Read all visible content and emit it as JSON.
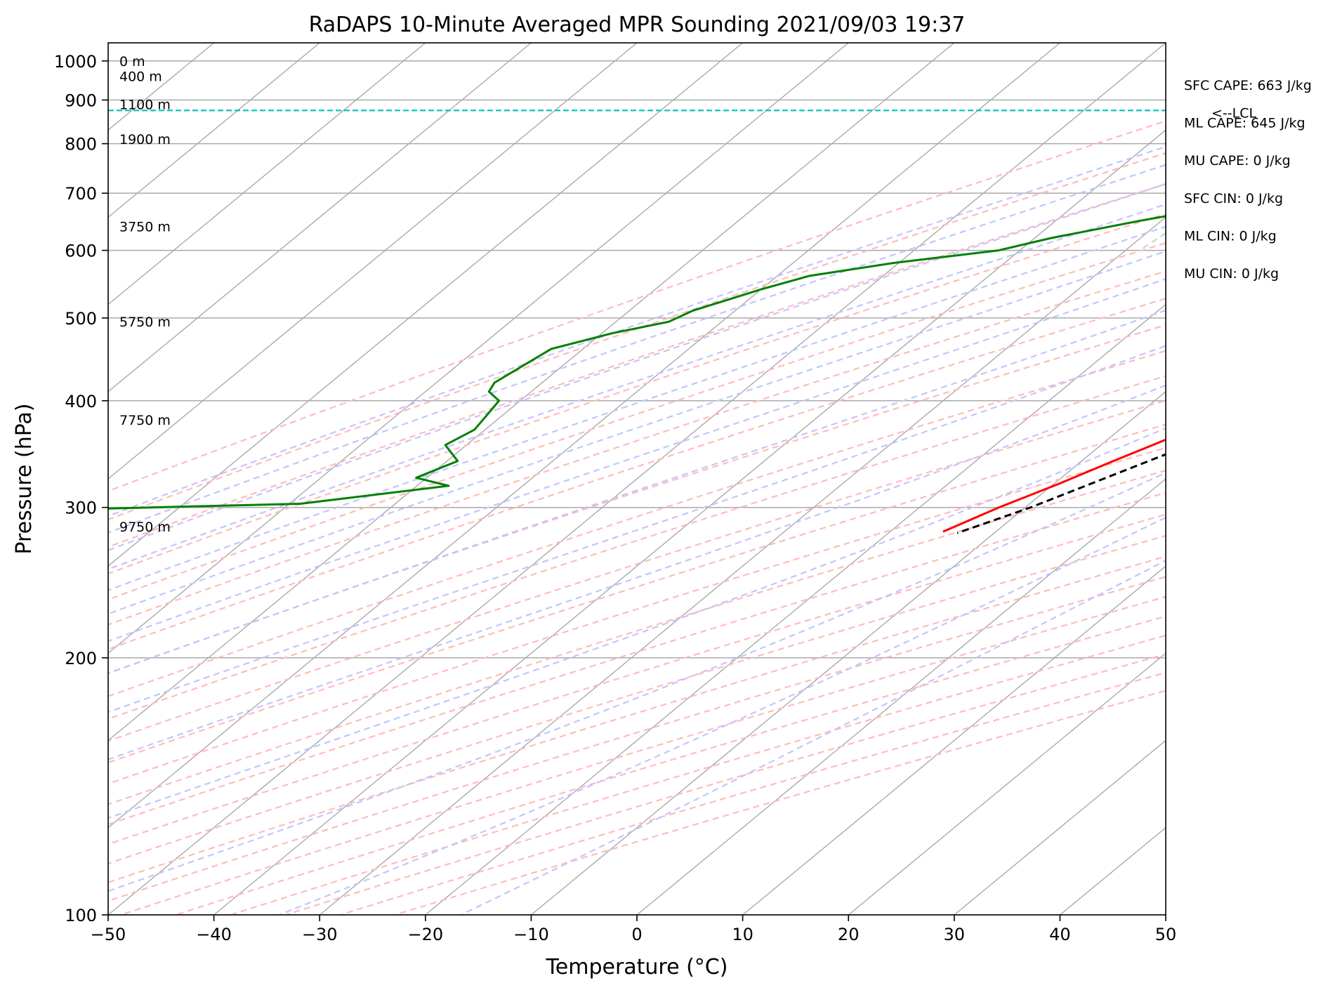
{
  "chart_data": {
    "type": "skew-t log-p sounding",
    "title": "RaDAPS 10-Minute Averaged MPR Sounding 2021/09/03 19:37",
    "xlabel": "Temperature (°C)",
    "ylabel": "Pressure (hPa)",
    "xlim": [
      -50,
      50
    ],
    "ylim": [
      1050,
      100
    ],
    "y_scale": "log",
    "grid": true,
    "x_ticks": [
      -50,
      -40,
      -30,
      -20,
      -10,
      0,
      10,
      20,
      30,
      40,
      50
    ],
    "x_tick_labels": [
      "−50",
      "−40",
      "−30",
      "−20",
      "−10",
      "0",
      "10",
      "20",
      "30",
      "40",
      "50"
    ],
    "y_ticks": [
      1000,
      900,
      800,
      700,
      600,
      500,
      400,
      300,
      200,
      100
    ],
    "y_tick_labels": [
      "1000",
      "900",
      "800",
      "700",
      "600",
      "500",
      "400",
      "300",
      "200",
      "100"
    ],
    "height_labels": [
      {
        "text": "0 m",
        "p": 1000
      },
      {
        "text": "400 m",
        "p": 960
      },
      {
        "text": "1100 m",
        "p": 890
      },
      {
        "text": "1900 m",
        "p": 810
      },
      {
        "text": "3750 m",
        "p": 640
      },
      {
        "text": "5750 m",
        "p": 495
      },
      {
        "text": "7750 m",
        "p": 380
      },
      {
        "text": "9750 m",
        "p": 285
      }
    ],
    "series": [
      {
        "color": "#ff0000",
        "p": [
          990,
          980,
          960,
          940,
          920,
          900,
          885,
          860,
          830,
          800,
          780,
          750,
          720,
          700,
          670,
          640,
          610,
          580,
          550,
          520,
          500,
          470,
          440,
          420,
          400,
          380,
          360,
          340,
          320,
          300,
          281
        ],
        "t": [
          29.0,
          27.5,
          25.0,
          23.0,
          21.5,
          20.5,
          20.0,
          19.3,
          18.2,
          17.5,
          17.0,
          17.0,
          17.0,
          17.0,
          16.0,
          14.7,
          13.5,
          12.8,
          11.5,
          9.5,
          7.8,
          5.5,
          3.0,
          1.2,
          -0.5,
          -2.5,
          -4.5,
          -7.0,
          -9.5,
          -12.5,
          -15.0
        ]
      },
      {
        "color": "#008000",
        "p": [
          995,
          985,
          975,
          960,
          940,
          920,
          900,
          880,
          860,
          830,
          800,
          785,
          770,
          750,
          700,
          680,
          650,
          620,
          600,
          580,
          560,
          540,
          510,
          495,
          480,
          460,
          420,
          410,
          400,
          385,
          370,
          355,
          340,
          325,
          318,
          303,
          299,
          287,
          278
        ],
        "t": [
          20.0,
          20.3,
          20.0,
          20.5,
          21.5,
          20.5,
          19.5,
          19.0,
          18.3,
          17.5,
          15.8,
          14.2,
          9.5,
          -3.0,
          -17.0,
          -25.0,
          -32.0,
          -38.5,
          -42.0,
          -50.5,
          -57.0,
          -60.0,
          -64.0,
          -65.0,
          -69.0,
          -73.0,
          -74.5,
          -74.0,
          -72.0,
          -71.5,
          -71.0,
          -72.0,
          -69.0,
          -71.0,
          -67.0,
          -79.0,
          -97.0,
          -100.0,
          -104.0
        ]
      },
      {
        "color": "#000000",
        "dashed": true,
        "p": [
          990,
          950,
          910,
          880,
          870,
          850,
          800,
          750,
          700,
          650,
          600,
          550,
          500,
          450,
          400,
          350,
          300,
          280
        ],
        "t": [
          29.0,
          25.5,
          22.5,
          21.0,
          20.5,
          19.6,
          18.4,
          17.6,
          17.0,
          15.8,
          14.7,
          13.0,
          10.8,
          7.8,
          3.5,
          -2.3,
          -9.5,
          -13.5
        ]
      }
    ],
    "lcl_pressure": 875,
    "lcl_label": "<--LCL",
    "lcl_color": "#00c0c0",
    "stats": [
      "SFC CAPE: 663 J/kg",
      "ML CAPE: 645 J/kg",
      "MU CAPE: 0 J/kg",
      "SFC CIN: 0 J/kg",
      "ML CIN: 0 J/kg",
      "MU CIN: 0 J/kg"
    ],
    "background": {
      "isotherm_color": "#aaaaaa",
      "dry_adiabat_color": "#ffbbbb",
      "moist_adiabat_color": "#c4c4ff",
      "mixing_ratio_color": "#bfe0bf"
    }
  }
}
